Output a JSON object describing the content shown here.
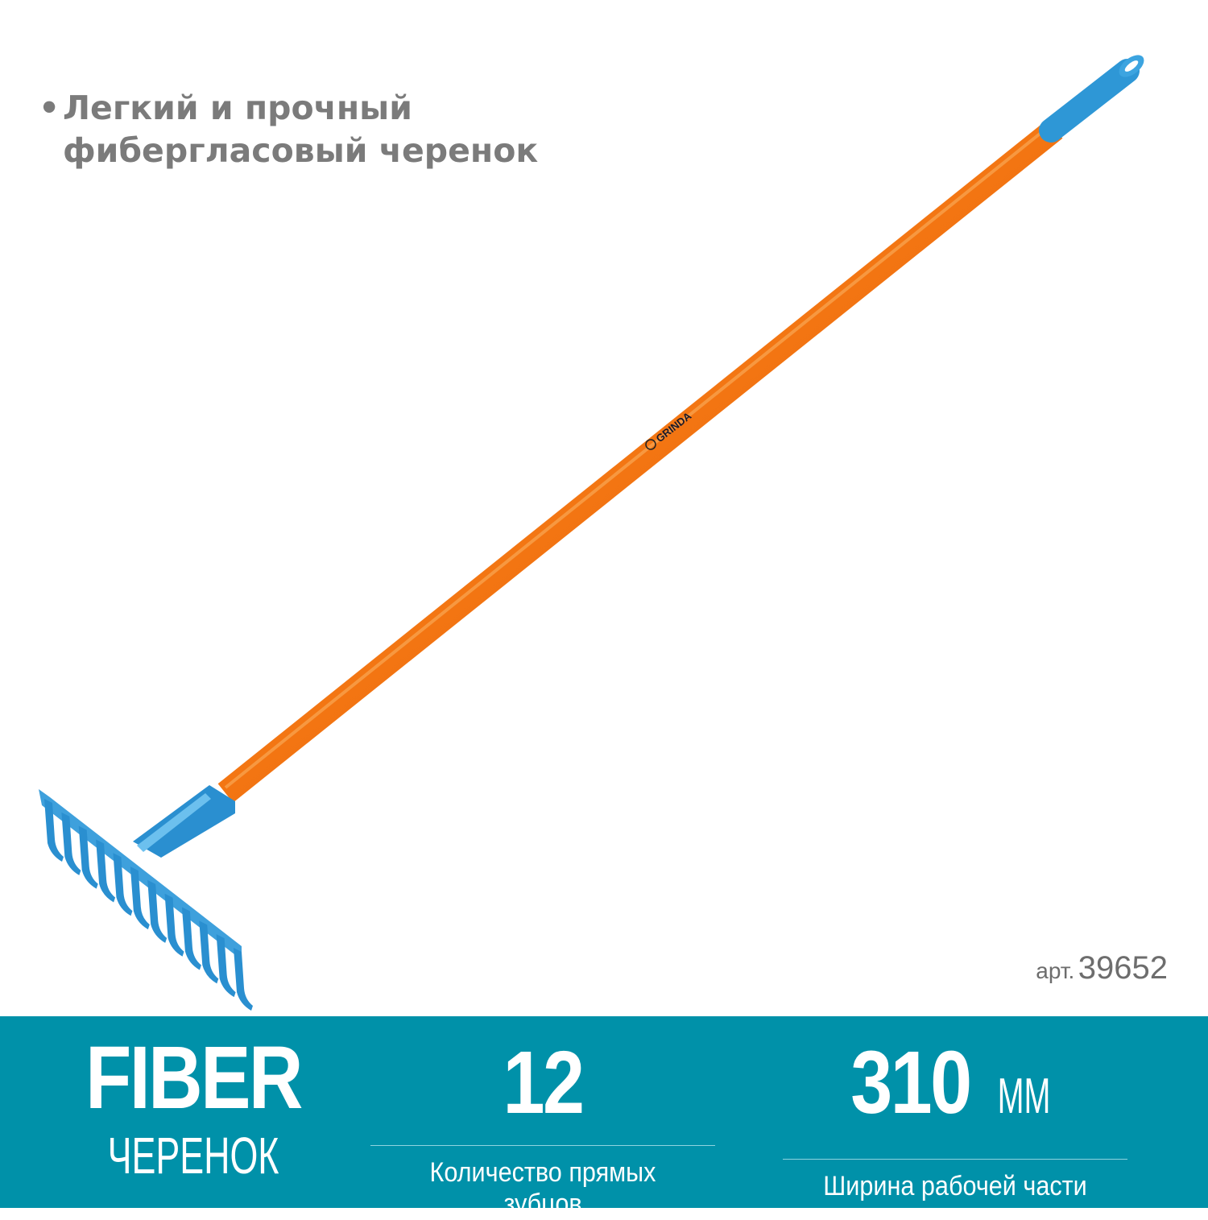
{
  "feature": {
    "bullet": "•",
    "lines": [
      "Легкий и прочный",
      "фиберглаcовый черенок"
    ]
  },
  "article": {
    "prefix": "арт.",
    "number": "39652"
  },
  "product": {
    "brand_on_handle": "GRINDA",
    "colors": {
      "handle": "#f47a12",
      "head": "#2a8fd0",
      "grip": "#2e97d6"
    }
  },
  "banner": {
    "color": "#0091a9",
    "handle": {
      "title": "FIBER",
      "subtitle": "ЧЕРЕНОК"
    },
    "teeth": {
      "value": "12",
      "label": "Количество прямых зубцов"
    },
    "width": {
      "value": "310",
      "unit": "ММ",
      "label": "Ширина рабочей части"
    }
  }
}
